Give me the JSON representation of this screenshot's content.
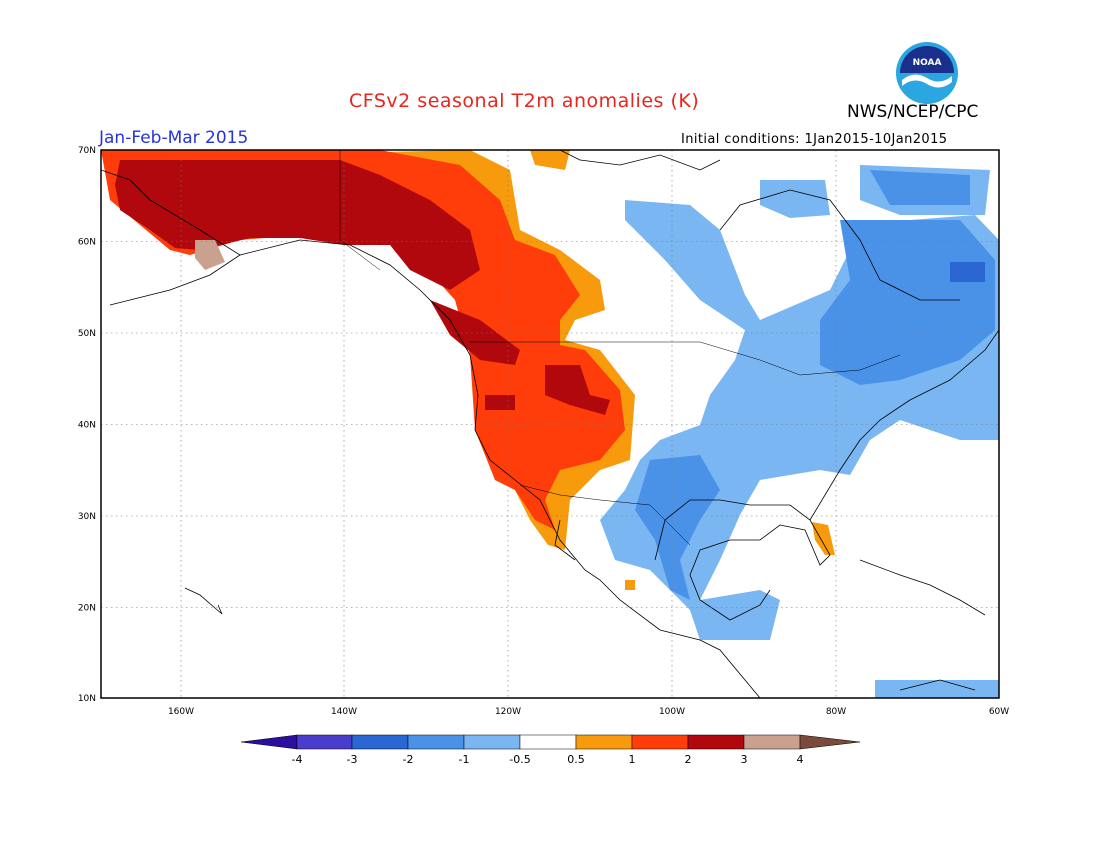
{
  "header": {
    "title": "CFSv2 seasonal T2m anomalies (K)",
    "agency": "NWS/NCEP/CPC",
    "period": "Jan-Feb-Mar 2015",
    "initial_conditions": "Initial conditions: 1Jan2015-10Jan2015",
    "logo_text": "NOAA"
  },
  "map": {
    "lat_labels": [
      "70N",
      "60N",
      "50N",
      "40N",
      "30N",
      "20N",
      "10N"
    ],
    "lon_labels": [
      "160W",
      "140W",
      "120W",
      "100W",
      "80W",
      "60W"
    ]
  },
  "colorbar": {
    "ticks": [
      "-4",
      "-3",
      "-2",
      "-1",
      "-0.5",
      "0.5",
      "1",
      "2",
      "3",
      "4"
    ],
    "colors": [
      "#2d0f9e",
      "#4a3ccc",
      "#2a66d4",
      "#4a92e8",
      "#7ab6f2",
      "#ffffff",
      "#f79b0d",
      "#ff3d0a",
      "#b0080c",
      "#caa08f",
      "#7a4a3c"
    ]
  }
}
